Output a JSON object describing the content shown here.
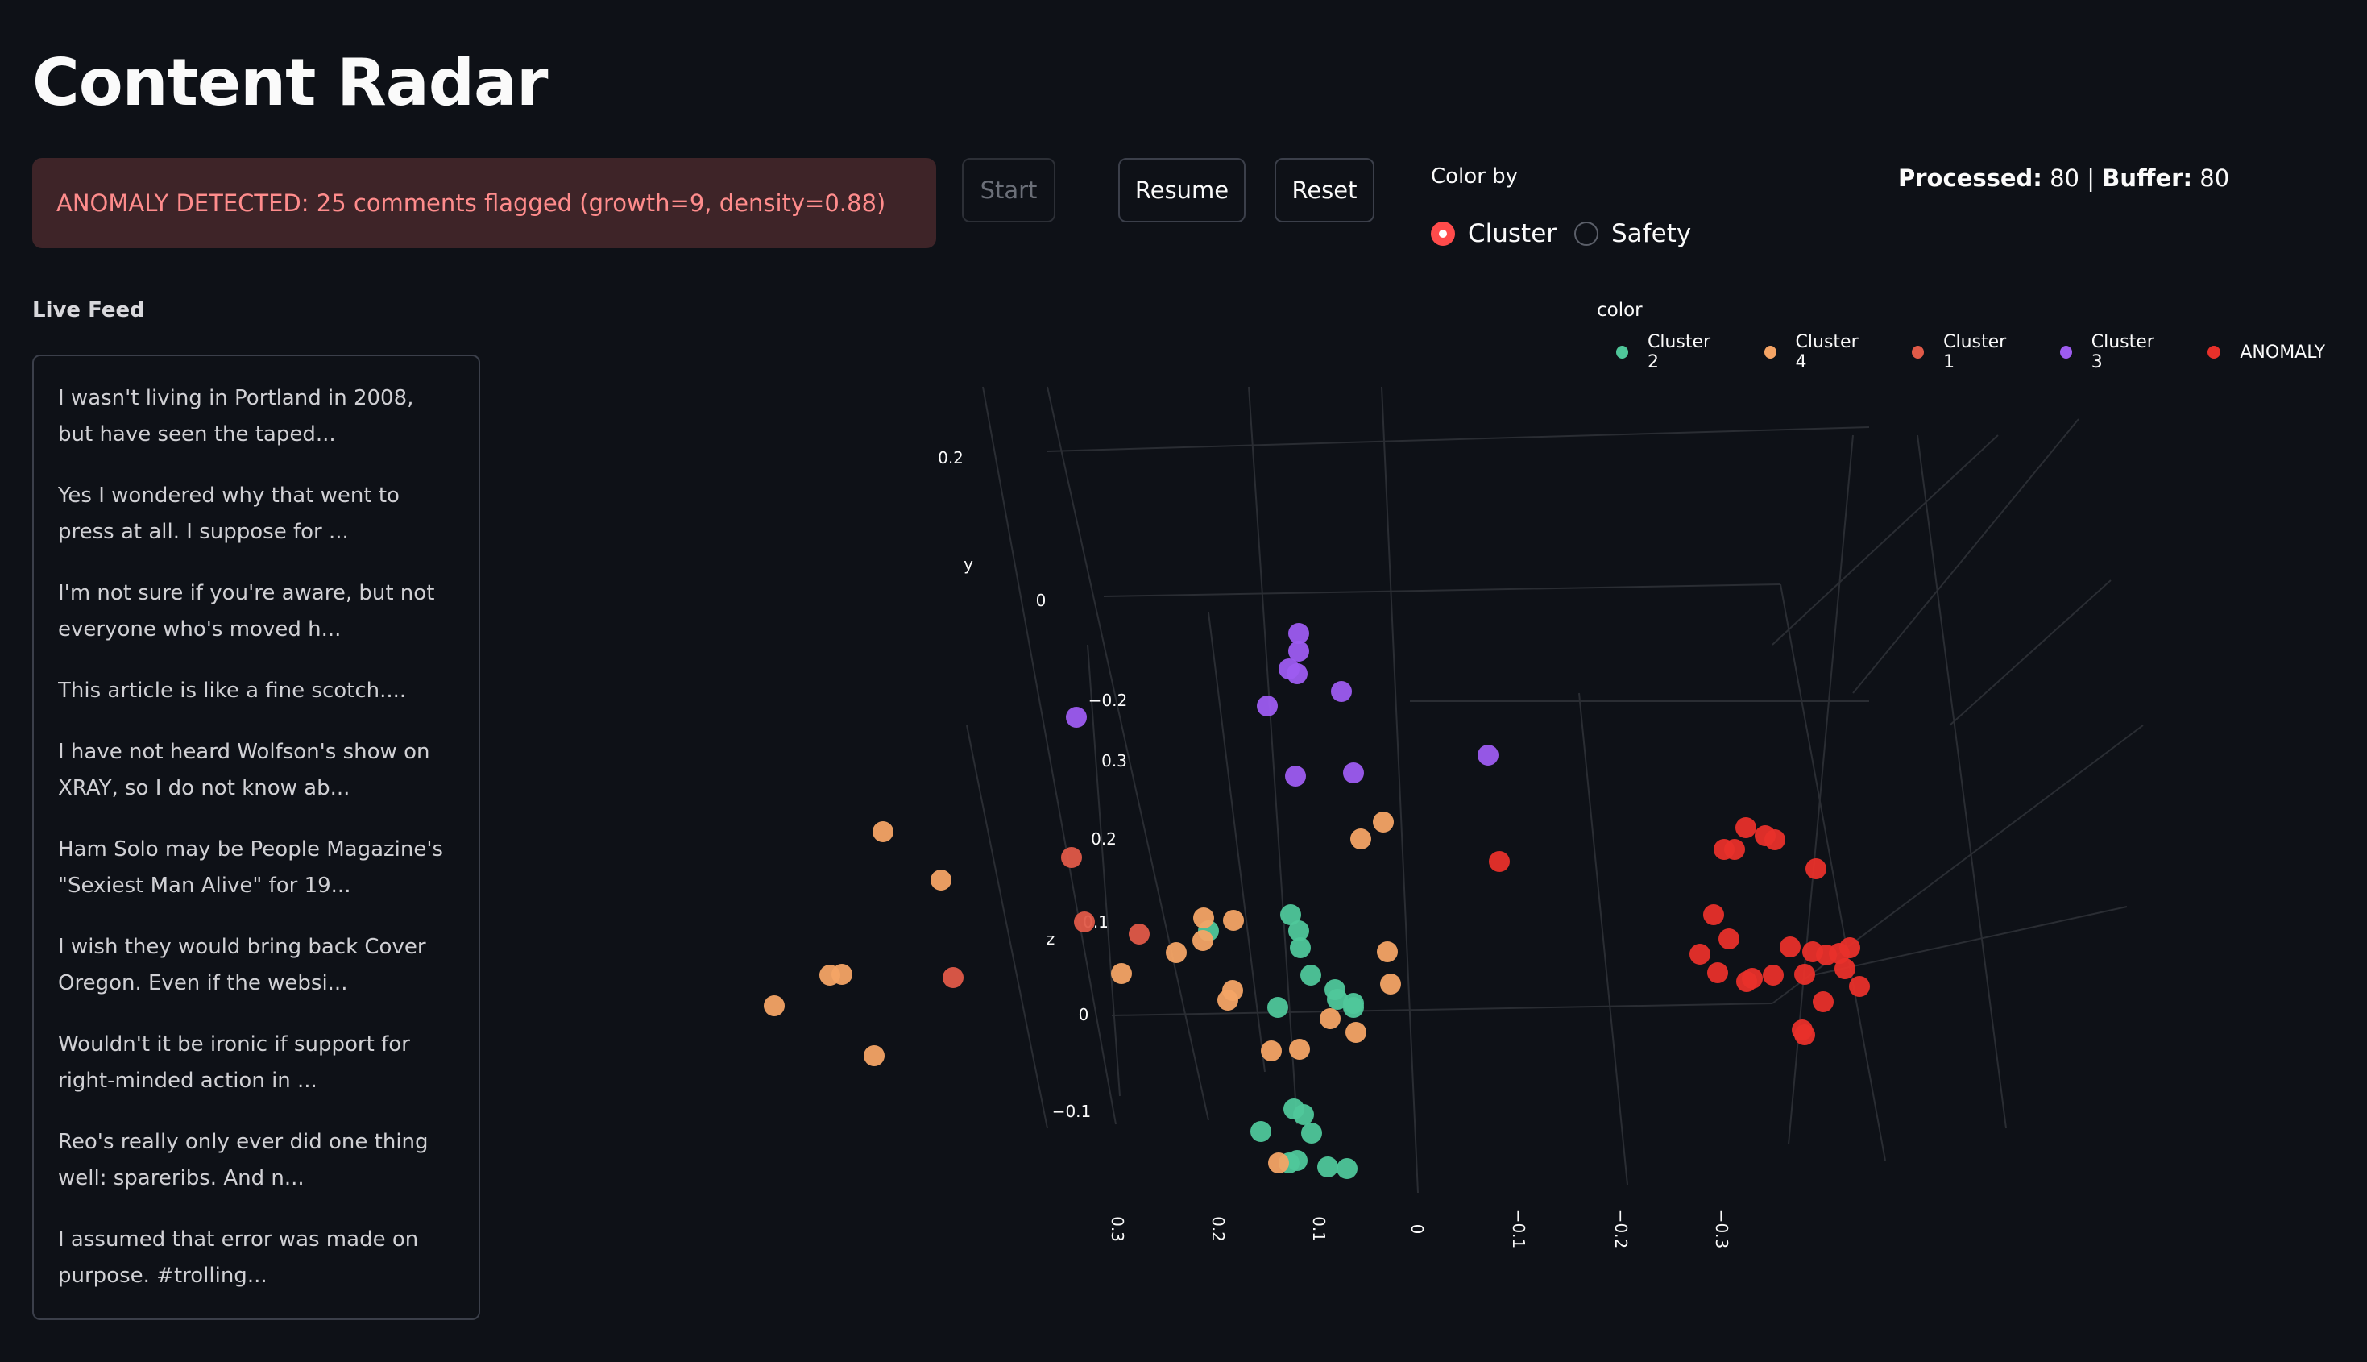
{
  "app": {
    "title": "Content Radar"
  },
  "alert": {
    "text": "ANOMALY DETECTED: 25 comments flagged (growth=9, density=0.88)"
  },
  "buttons": {
    "start": "Start",
    "resume": "Resume",
    "reset": "Reset"
  },
  "color_by": {
    "label": "Color by",
    "options": [
      "Cluster",
      "Safety"
    ],
    "selected": "Cluster"
  },
  "stats": {
    "processed_label": "Processed:",
    "processed": "80",
    "separator": "|",
    "buffer_label": "Buffer:",
    "buffer": "80"
  },
  "feed": {
    "label": "Live Feed",
    "items": [
      "I wasn't living in Portland in 2008, but have seen the taped...",
      "Yes I wondered why that went to press at all. I suppose for ...",
      "I'm not sure if you're aware, but not everyone who's moved h...",
      "This article is like a fine scotch....",
      "I have not heard Wolfson's show on XRAY, so I do not know ab...",
      "Ham Solo may be People Magazine's \"Sexiest Man Alive\" for 19...",
      "I wish they would bring back Cover Oregon. Even if the websi...",
      "Wouldn't it be ironic if support for right-minded action in ...",
      "Reo's really only ever did one thing well: spareribs. And n...",
      "I assumed that error was made on purpose. #trolling..."
    ]
  },
  "chart_data": {
    "type": "scatter",
    "legend_title": "color",
    "legend_placement": "top-right",
    "series": [
      {
        "name": "Cluster 2",
        "color": "#4fc79a"
      },
      {
        "name": "Cluster 4",
        "color": "#f4a465"
      },
      {
        "name": "Cluster 1",
        "color": "#e05a48"
      },
      {
        "name": "Cluster 3",
        "color": "#9d5cf0"
      },
      {
        "name": "ANOMALY",
        "color": "#e8302a"
      }
    ],
    "axes": {
      "y_label": "y",
      "y_ticks": [
        "0.2",
        "0",
        "−0.2"
      ],
      "z_label": "z",
      "z_ticks": [
        "0.3",
        "0.2",
        "0.1",
        "0",
        "−0.1"
      ],
      "x_ticks": [
        "0.3",
        "0.2",
        "0.1",
        "0",
        "−0.1",
        "−0.2",
        "−0.3"
      ]
    }
  }
}
